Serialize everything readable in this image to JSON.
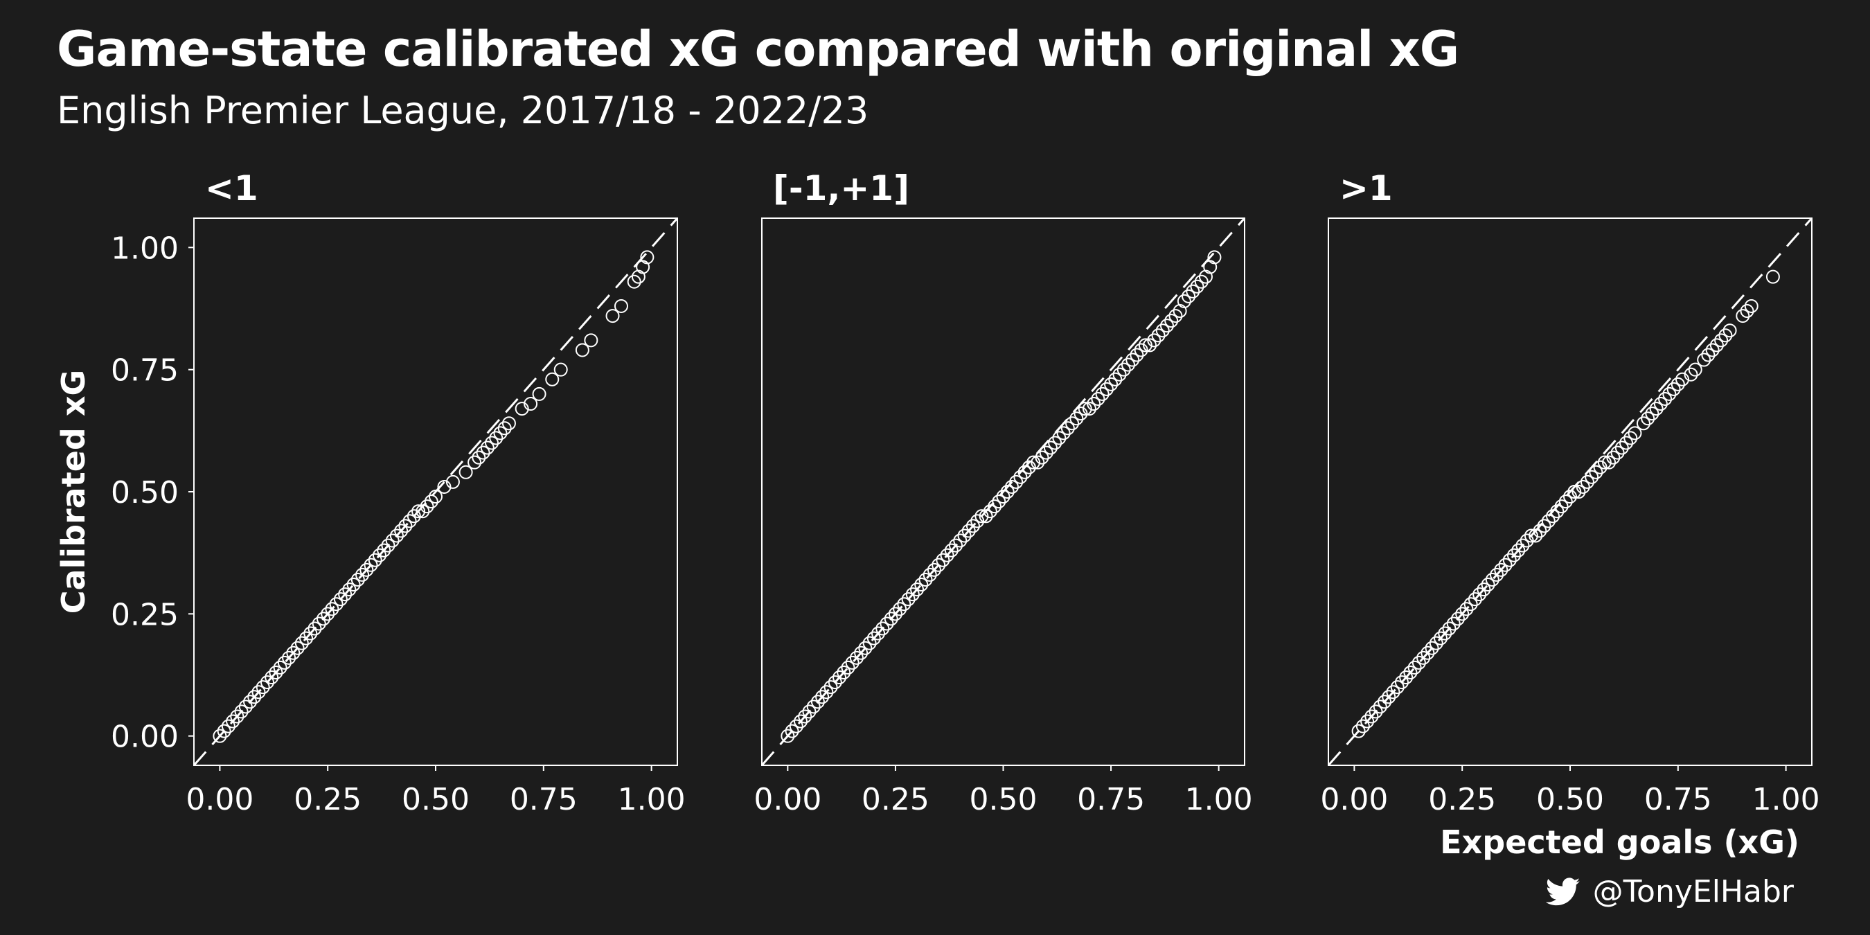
{
  "title": "Game-state calibrated xG compared with original xG",
  "subtitle": "English Premier League, 2017/18 - 2022/23",
  "caption": {
    "handle": "@TonyElHabr",
    "icon": "twitter-bird-icon"
  },
  "colors": {
    "background": "#1c1c1c",
    "foreground": "#ffffff"
  },
  "chart_data": [
    {
      "type": "scatter",
      "facet": "<1",
      "xlabel": "",
      "ylabel": "Calibrated xG",
      "xlim": [
        -0.06,
        1.06
      ],
      "ylim": [
        -0.06,
        1.06
      ],
      "xticks": [
        "0.00",
        "0.25",
        "0.50",
        "0.75",
        "1.00"
      ],
      "yticks": [
        "0.00",
        "0.25",
        "0.50",
        "0.75",
        "1.00"
      ],
      "reference_line": "y = x (dashed)",
      "points": [
        [
          0.0,
          0.0
        ],
        [
          0.01,
          0.01
        ],
        [
          0.02,
          0.02
        ],
        [
          0.03,
          0.03
        ],
        [
          0.04,
          0.04
        ],
        [
          0.05,
          0.05
        ],
        [
          0.06,
          0.06
        ],
        [
          0.07,
          0.07
        ],
        [
          0.08,
          0.08
        ],
        [
          0.09,
          0.09
        ],
        [
          0.1,
          0.1
        ],
        [
          0.11,
          0.11
        ],
        [
          0.12,
          0.12
        ],
        [
          0.13,
          0.13
        ],
        [
          0.14,
          0.14
        ],
        [
          0.15,
          0.15
        ],
        [
          0.16,
          0.16
        ],
        [
          0.17,
          0.17
        ],
        [
          0.18,
          0.18
        ],
        [
          0.19,
          0.19
        ],
        [
          0.2,
          0.2
        ],
        [
          0.21,
          0.21
        ],
        [
          0.22,
          0.22
        ],
        [
          0.23,
          0.23
        ],
        [
          0.24,
          0.24
        ],
        [
          0.25,
          0.25
        ],
        [
          0.26,
          0.26
        ],
        [
          0.27,
          0.27
        ],
        [
          0.28,
          0.28
        ],
        [
          0.29,
          0.29
        ],
        [
          0.3,
          0.3
        ],
        [
          0.31,
          0.31
        ],
        [
          0.32,
          0.32
        ],
        [
          0.33,
          0.33
        ],
        [
          0.34,
          0.34
        ],
        [
          0.35,
          0.35
        ],
        [
          0.36,
          0.36
        ],
        [
          0.37,
          0.37
        ],
        [
          0.38,
          0.38
        ],
        [
          0.39,
          0.39
        ],
        [
          0.4,
          0.4
        ],
        [
          0.41,
          0.41
        ],
        [
          0.42,
          0.42
        ],
        [
          0.43,
          0.43
        ],
        [
          0.44,
          0.44
        ],
        [
          0.45,
          0.45
        ],
        [
          0.46,
          0.46
        ],
        [
          0.47,
          0.46
        ],
        [
          0.48,
          0.47
        ],
        [
          0.49,
          0.48
        ],
        [
          0.5,
          0.49
        ],
        [
          0.52,
          0.51
        ],
        [
          0.54,
          0.52
        ],
        [
          0.57,
          0.54
        ],
        [
          0.59,
          0.56
        ],
        [
          0.6,
          0.57
        ],
        [
          0.61,
          0.58
        ],
        [
          0.62,
          0.59
        ],
        [
          0.63,
          0.6
        ],
        [
          0.64,
          0.61
        ],
        [
          0.65,
          0.62
        ],
        [
          0.66,
          0.63
        ],
        [
          0.67,
          0.64
        ],
        [
          0.7,
          0.67
        ],
        [
          0.72,
          0.68
        ],
        [
          0.74,
          0.7
        ],
        [
          0.77,
          0.73
        ],
        [
          0.79,
          0.75
        ],
        [
          0.84,
          0.79
        ],
        [
          0.86,
          0.81
        ],
        [
          0.91,
          0.86
        ],
        [
          0.93,
          0.88
        ],
        [
          0.96,
          0.93
        ],
        [
          0.97,
          0.94
        ],
        [
          0.98,
          0.96
        ],
        [
          0.99,
          0.98
        ]
      ]
    },
    {
      "type": "scatter",
      "facet": "[-1,+1]",
      "xlabel": "",
      "ylabel": "",
      "xlim": [
        -0.06,
        1.06
      ],
      "ylim": [
        -0.06,
        1.06
      ],
      "xticks": [
        "0.00",
        "0.25",
        "0.50",
        "0.75",
        "1.00"
      ],
      "yticks": [],
      "reference_line": "y = x (dashed)",
      "points": [
        [
          0.0,
          0.0
        ],
        [
          0.01,
          0.01
        ],
        [
          0.02,
          0.02
        ],
        [
          0.03,
          0.03
        ],
        [
          0.04,
          0.04
        ],
        [
          0.05,
          0.05
        ],
        [
          0.06,
          0.06
        ],
        [
          0.07,
          0.07
        ],
        [
          0.08,
          0.08
        ],
        [
          0.09,
          0.09
        ],
        [
          0.1,
          0.1
        ],
        [
          0.11,
          0.11
        ],
        [
          0.12,
          0.12
        ],
        [
          0.13,
          0.13
        ],
        [
          0.14,
          0.14
        ],
        [
          0.15,
          0.15
        ],
        [
          0.16,
          0.16
        ],
        [
          0.17,
          0.17
        ],
        [
          0.18,
          0.18
        ],
        [
          0.19,
          0.19
        ],
        [
          0.2,
          0.2
        ],
        [
          0.21,
          0.21
        ],
        [
          0.22,
          0.22
        ],
        [
          0.23,
          0.23
        ],
        [
          0.24,
          0.24
        ],
        [
          0.25,
          0.25
        ],
        [
          0.26,
          0.26
        ],
        [
          0.27,
          0.27
        ],
        [
          0.28,
          0.28
        ],
        [
          0.29,
          0.29
        ],
        [
          0.3,
          0.3
        ],
        [
          0.31,
          0.31
        ],
        [
          0.32,
          0.32
        ],
        [
          0.33,
          0.33
        ],
        [
          0.34,
          0.34
        ],
        [
          0.35,
          0.35
        ],
        [
          0.36,
          0.36
        ],
        [
          0.37,
          0.37
        ],
        [
          0.38,
          0.38
        ],
        [
          0.39,
          0.39
        ],
        [
          0.4,
          0.4
        ],
        [
          0.41,
          0.41
        ],
        [
          0.42,
          0.42
        ],
        [
          0.43,
          0.43
        ],
        [
          0.44,
          0.44
        ],
        [
          0.45,
          0.45
        ],
        [
          0.46,
          0.45
        ],
        [
          0.47,
          0.46
        ],
        [
          0.48,
          0.47
        ],
        [
          0.49,
          0.48
        ],
        [
          0.5,
          0.49
        ],
        [
          0.51,
          0.5
        ],
        [
          0.52,
          0.51
        ],
        [
          0.53,
          0.52
        ],
        [
          0.54,
          0.53
        ],
        [
          0.55,
          0.54
        ],
        [
          0.56,
          0.55
        ],
        [
          0.57,
          0.56
        ],
        [
          0.58,
          0.56
        ],
        [
          0.59,
          0.57
        ],
        [
          0.6,
          0.58
        ],
        [
          0.61,
          0.59
        ],
        [
          0.62,
          0.6
        ],
        [
          0.63,
          0.61
        ],
        [
          0.64,
          0.62
        ],
        [
          0.65,
          0.63
        ],
        [
          0.66,
          0.64
        ],
        [
          0.67,
          0.65
        ],
        [
          0.68,
          0.66
        ],
        [
          0.69,
          0.67
        ],
        [
          0.7,
          0.67
        ],
        [
          0.71,
          0.68
        ],
        [
          0.72,
          0.69
        ],
        [
          0.73,
          0.7
        ],
        [
          0.74,
          0.71
        ],
        [
          0.75,
          0.72
        ],
        [
          0.76,
          0.73
        ],
        [
          0.77,
          0.74
        ],
        [
          0.78,
          0.75
        ],
        [
          0.79,
          0.76
        ],
        [
          0.8,
          0.77
        ],
        [
          0.81,
          0.78
        ],
        [
          0.82,
          0.79
        ],
        [
          0.83,
          0.8
        ],
        [
          0.84,
          0.8
        ],
        [
          0.85,
          0.81
        ],
        [
          0.86,
          0.82
        ],
        [
          0.87,
          0.83
        ],
        [
          0.88,
          0.84
        ],
        [
          0.89,
          0.85
        ],
        [
          0.9,
          0.86
        ],
        [
          0.91,
          0.87
        ],
        [
          0.92,
          0.89
        ],
        [
          0.93,
          0.9
        ],
        [
          0.94,
          0.91
        ],
        [
          0.95,
          0.92
        ],
        [
          0.96,
          0.93
        ],
        [
          0.97,
          0.94
        ],
        [
          0.98,
          0.96
        ],
        [
          0.99,
          0.98
        ]
      ]
    },
    {
      "type": "scatter",
      "facet": ">1",
      "xlabel": "Expected goals (xG)",
      "ylabel": "",
      "xlim": [
        -0.06,
        1.06
      ],
      "ylim": [
        -0.06,
        1.06
      ],
      "xticks": [
        "0.00",
        "0.25",
        "0.50",
        "0.75",
        "1.00"
      ],
      "yticks": [],
      "reference_line": "y = x (dashed)",
      "points": [
        [
          0.01,
          0.01
        ],
        [
          0.02,
          0.02
        ],
        [
          0.03,
          0.03
        ],
        [
          0.04,
          0.04
        ],
        [
          0.05,
          0.05
        ],
        [
          0.06,
          0.06
        ],
        [
          0.07,
          0.07
        ],
        [
          0.08,
          0.08
        ],
        [
          0.09,
          0.09
        ],
        [
          0.1,
          0.1
        ],
        [
          0.11,
          0.11
        ],
        [
          0.12,
          0.12
        ],
        [
          0.13,
          0.13
        ],
        [
          0.14,
          0.14
        ],
        [
          0.15,
          0.15
        ],
        [
          0.16,
          0.16
        ],
        [
          0.17,
          0.17
        ],
        [
          0.18,
          0.18
        ],
        [
          0.19,
          0.19
        ],
        [
          0.2,
          0.2
        ],
        [
          0.21,
          0.21
        ],
        [
          0.22,
          0.22
        ],
        [
          0.23,
          0.23
        ],
        [
          0.24,
          0.24
        ],
        [
          0.25,
          0.25
        ],
        [
          0.26,
          0.26
        ],
        [
          0.27,
          0.27
        ],
        [
          0.28,
          0.28
        ],
        [
          0.29,
          0.29
        ],
        [
          0.3,
          0.3
        ],
        [
          0.31,
          0.31
        ],
        [
          0.32,
          0.32
        ],
        [
          0.33,
          0.33
        ],
        [
          0.34,
          0.34
        ],
        [
          0.35,
          0.35
        ],
        [
          0.36,
          0.36
        ],
        [
          0.37,
          0.37
        ],
        [
          0.38,
          0.38
        ],
        [
          0.39,
          0.39
        ],
        [
          0.4,
          0.4
        ],
        [
          0.41,
          0.41
        ],
        [
          0.42,
          0.41
        ],
        [
          0.43,
          0.42
        ],
        [
          0.44,
          0.43
        ],
        [
          0.45,
          0.44
        ],
        [
          0.46,
          0.45
        ],
        [
          0.47,
          0.46
        ],
        [
          0.48,
          0.47
        ],
        [
          0.49,
          0.48
        ],
        [
          0.5,
          0.49
        ],
        [
          0.51,
          0.5
        ],
        [
          0.52,
          0.5
        ],
        [
          0.53,
          0.51
        ],
        [
          0.54,
          0.52
        ],
        [
          0.55,
          0.53
        ],
        [
          0.56,
          0.54
        ],
        [
          0.57,
          0.55
        ],
        [
          0.58,
          0.56
        ],
        [
          0.59,
          0.56
        ],
        [
          0.6,
          0.57
        ],
        [
          0.61,
          0.58
        ],
        [
          0.62,
          0.59
        ],
        [
          0.63,
          0.6
        ],
        [
          0.64,
          0.61
        ],
        [
          0.65,
          0.62
        ],
        [
          0.67,
          0.64
        ],
        [
          0.68,
          0.65
        ],
        [
          0.69,
          0.66
        ],
        [
          0.7,
          0.67
        ],
        [
          0.71,
          0.68
        ],
        [
          0.72,
          0.69
        ],
        [
          0.73,
          0.7
        ],
        [
          0.74,
          0.71
        ],
        [
          0.75,
          0.72
        ],
        [
          0.76,
          0.73
        ],
        [
          0.78,
          0.74
        ],
        [
          0.79,
          0.75
        ],
        [
          0.81,
          0.77
        ],
        [
          0.82,
          0.78
        ],
        [
          0.83,
          0.79
        ],
        [
          0.84,
          0.8
        ],
        [
          0.85,
          0.81
        ],
        [
          0.86,
          0.82
        ],
        [
          0.87,
          0.83
        ],
        [
          0.9,
          0.86
        ],
        [
          0.91,
          0.87
        ],
        [
          0.92,
          0.88
        ],
        [
          0.97,
          0.94
        ]
      ]
    }
  ]
}
